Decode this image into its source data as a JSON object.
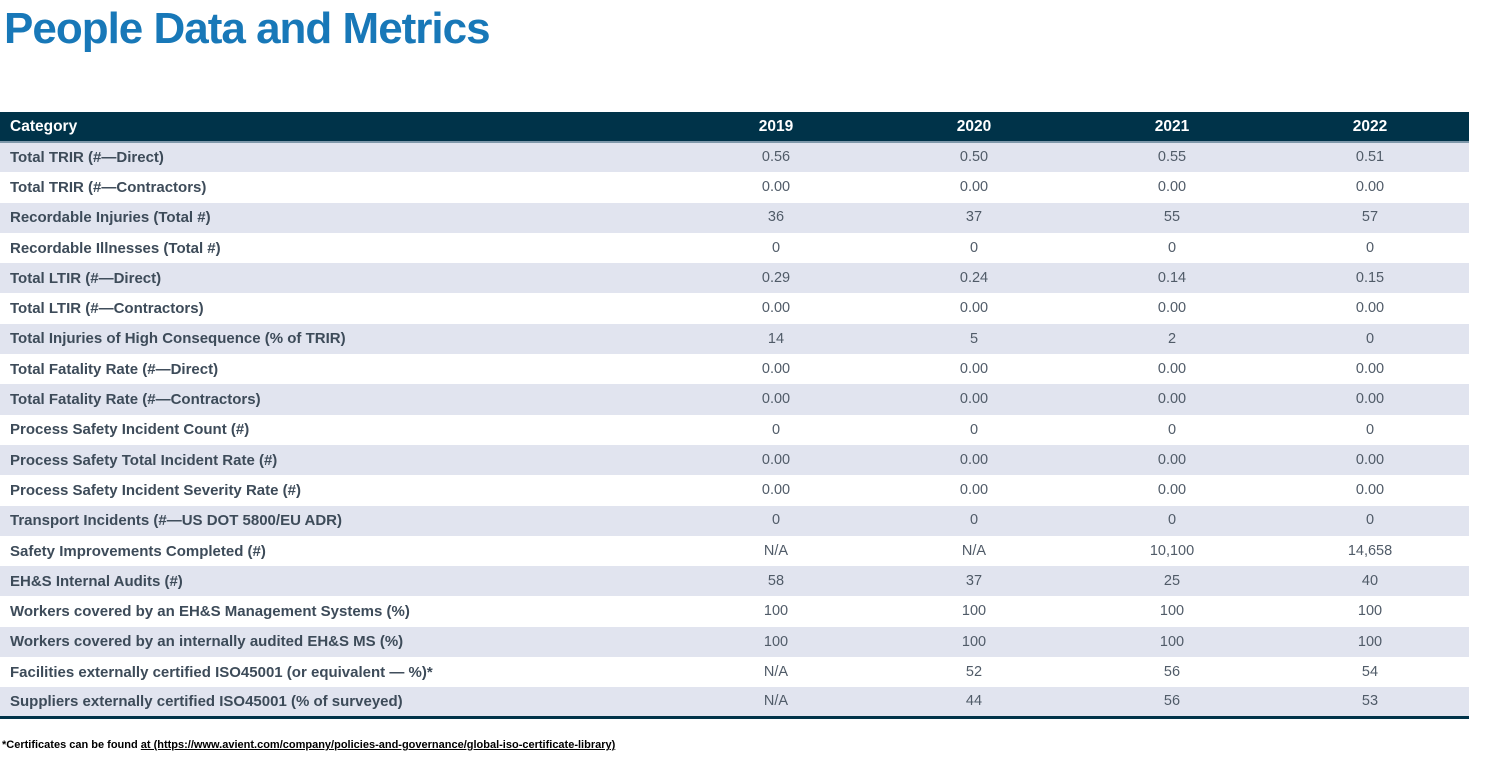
{
  "page": {
    "title": "People Data and Metrics"
  },
  "colors": {
    "title_blue": "#1878b8",
    "header_bg": "#003349",
    "row_alt_bg": "#e1e4ef",
    "label_text": "#3d4b59",
    "value_text": "#505b68"
  },
  "chart_data": {
    "type": "table",
    "title": "People Data and Metrics",
    "columns": [
      "Category",
      "2019",
      "2020",
      "2021",
      "2022"
    ],
    "rows": [
      {
        "label": "Total TRIR (#—Direct)",
        "values": [
          "0.56",
          "0.50",
          "0.55",
          "0.51"
        ]
      },
      {
        "label": "Total TRIR (#—Contractors)",
        "values": [
          "0.00",
          "0.00",
          "0.00",
          "0.00"
        ]
      },
      {
        "label": "Recordable Injuries (Total #)",
        "values": [
          "36",
          "37",
          "55",
          "57"
        ]
      },
      {
        "label": "Recordable Illnesses (Total #)",
        "values": [
          "0",
          "0",
          "0",
          "0"
        ]
      },
      {
        "label": "Total LTIR (#—Direct)",
        "values": [
          "0.29",
          "0.24",
          "0.14",
          "0.15"
        ]
      },
      {
        "label": "Total LTIR (#—Contractors)",
        "values": [
          "0.00",
          "0.00",
          "0.00",
          "0.00"
        ]
      },
      {
        "label": "Total Injuries of High Consequence (% of TRIR)",
        "values": [
          "14",
          "5",
          "2",
          "0"
        ]
      },
      {
        "label": "Total Fatality Rate (#—Direct)",
        "values": [
          "0.00",
          "0.00",
          "0.00",
          "0.00"
        ]
      },
      {
        "label": "Total Fatality Rate (#—Contractors)",
        "values": [
          "0.00",
          "0.00",
          "0.00",
          "0.00"
        ]
      },
      {
        "label": "Process Safety Incident Count (#)",
        "values": [
          "0",
          "0",
          "0",
          "0"
        ]
      },
      {
        "label": "Process Safety Total Incident Rate (#)",
        "values": [
          "0.00",
          "0.00",
          "0.00",
          "0.00"
        ]
      },
      {
        "label": "Process Safety Incident Severity Rate (#)",
        "values": [
          "0.00",
          "0.00",
          "0.00",
          "0.00"
        ]
      },
      {
        "label": "Transport Incidents (#—US DOT 5800/EU ADR)",
        "values": [
          "0",
          "0",
          "0",
          "0"
        ]
      },
      {
        "label": "Safety Improvements Completed (#)",
        "values": [
          "N/A",
          "N/A",
          "10,100",
          "14,658"
        ]
      },
      {
        "label": "EH&S Internal Audits (#)",
        "values": [
          "58",
          "37",
          "25",
          "40"
        ]
      },
      {
        "label": "Workers covered by an EH&S Management Systems (%)",
        "values": [
          "100",
          "100",
          "100",
          "100"
        ]
      },
      {
        "label": "Workers covered by an internally audited EH&S MS (%)",
        "values": [
          "100",
          "100",
          "100",
          "100"
        ]
      },
      {
        "label": "Facilities externally certified ISO45001 (or equivalent — %)*",
        "values": [
          "N/A",
          "52",
          "56",
          "54"
        ]
      },
      {
        "label": "Suppliers externally certified ISO45001 (% of surveyed)",
        "values": [
          "N/A",
          "44",
          "56",
          "53"
        ]
      }
    ]
  },
  "footnote": {
    "prefix": "*Certificates can be found ",
    "link": "at (https://www.avient.com/company/policies-and-governance/global-iso-certificate-library)"
  }
}
